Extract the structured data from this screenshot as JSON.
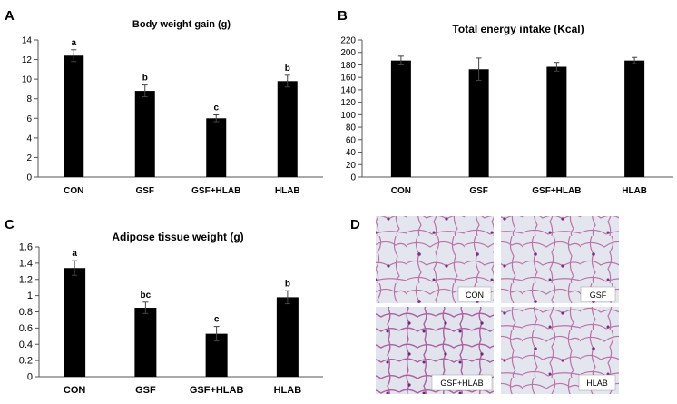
{
  "chart_data": [
    {
      "panel": "A",
      "type": "bar",
      "title": "Body weight gain (g)",
      "categories": [
        "CON",
        "GSF",
        "GSF+HLAB",
        "HLAB"
      ],
      "values": [
        12.4,
        8.8,
        6.0,
        9.8
      ],
      "errors": [
        0.6,
        0.6,
        0.35,
        0.6
      ],
      "labels": [
        "a",
        "b",
        "c",
        "b"
      ],
      "ylim": [
        0,
        14
      ],
      "yticks": [
        "0",
        "2",
        "4",
        "6",
        "8",
        "10",
        "12",
        "14"
      ],
      "color": "#000000"
    },
    {
      "panel": "B",
      "type": "bar",
      "title": "Total energy intake (Kcal)",
      "categories": [
        "CON",
        "GSF",
        "GSF+HLAB",
        "HLAB"
      ],
      "values": [
        187,
        173,
        177,
        187
      ],
      "errors": [
        7,
        18,
        7,
        5
      ],
      "labels": [
        "",
        "",
        "",
        ""
      ],
      "ylim": [
        0,
        220
      ],
      "yticks": [
        "0",
        "20",
        "40",
        "60",
        "80",
        "100",
        "120",
        "140",
        "160",
        "180",
        "200",
        "220"
      ],
      "color": "#000000"
    },
    {
      "panel": "C",
      "type": "bar",
      "title": "Adipose tissue weight (g)",
      "categories": [
        "CON",
        "GSF",
        "GSF+HLAB",
        "HLAB"
      ],
      "values": [
        1.34,
        0.85,
        0.53,
        0.98
      ],
      "errors": [
        0.09,
        0.07,
        0.09,
        0.08
      ],
      "labels": [
        "a",
        "bc",
        "c",
        "b"
      ],
      "ylim": [
        0,
        1.6
      ],
      "yticks": [
        "0",
        "0.2",
        "0.4",
        "0.6",
        "0.8",
        "1",
        "1.2",
        "1.4",
        "1.6"
      ],
      "color": "#000000"
    }
  ],
  "histology": {
    "panel": "D",
    "images": [
      {
        "label": "CON"
      },
      {
        "label": "GSF"
      },
      {
        "label": "GSF+HLAB"
      },
      {
        "label": "HLAB"
      }
    ],
    "colors": {
      "background": "#e3e6ee",
      "membrane": "#b6669f",
      "nuclei": "#77307f"
    }
  }
}
